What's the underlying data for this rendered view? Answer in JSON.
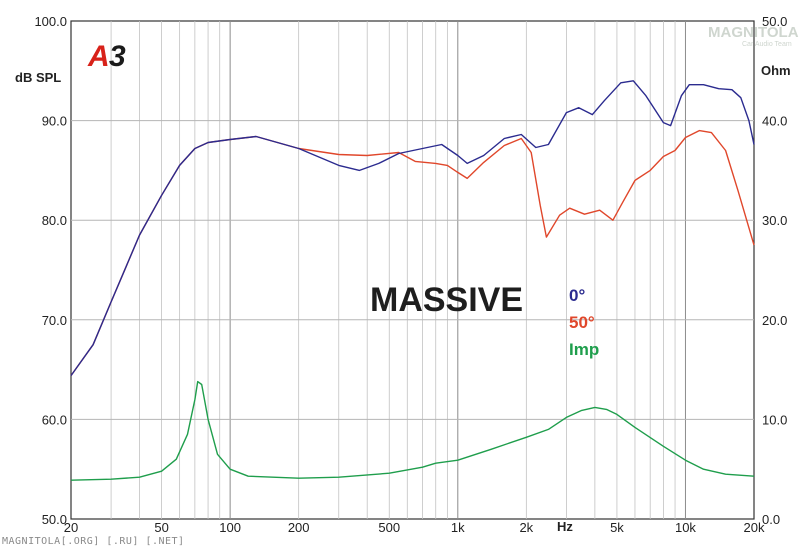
{
  "badge": {
    "prefix": "A",
    "number": "3"
  },
  "watermark": {
    "text": "MAGNITOLA",
    "subtext": "Car Audio Team"
  },
  "footer_text": "MAGNITOLA[.ORG] [.RU] [.NET]",
  "chart_data": {
    "type": "line",
    "title": "MASSIVE",
    "xlabel": "Hz",
    "ylabel": "dB SPL",
    "y2label": "Ohm",
    "x_scale": "log",
    "xlim": [
      20,
      20000
    ],
    "ylim": [
      50,
      100
    ],
    "y2lim": [
      0,
      50
    ],
    "grid": true,
    "legend_position": "center-right",
    "x_ticks": [
      {
        "value": 20,
        "label": "20"
      },
      {
        "value": 50,
        "label": "50"
      },
      {
        "value": 100,
        "label": "100"
      },
      {
        "value": 200,
        "label": "200"
      },
      {
        "value": 500,
        "label": "500"
      },
      {
        "value": 1000,
        "label": "1k"
      },
      {
        "value": 2000,
        "label": "2k"
      },
      {
        "value": 5000,
        "label": "5k"
      },
      {
        "value": 10000,
        "label": "10k"
      },
      {
        "value": 20000,
        "label": "20k"
      }
    ],
    "y_ticks": [
      {
        "value": 50,
        "label": "50.0"
      },
      {
        "value": 60,
        "label": "60.0"
      },
      {
        "value": 70,
        "label": "70.0"
      },
      {
        "value": 80,
        "label": "80.0"
      },
      {
        "value": 90,
        "label": "90.0"
      },
      {
        "value": 100,
        "label": "100.0"
      }
    ],
    "y2_ticks": [
      {
        "value": 0,
        "label": "0.0"
      },
      {
        "value": 10,
        "label": "10.0"
      },
      {
        "value": 20,
        "label": "20.0"
      },
      {
        "value": 30,
        "label": "30.0"
      },
      {
        "value": 40,
        "label": "40.0"
      },
      {
        "value": 50,
        "label": "50.0"
      }
    ],
    "series": [
      {
        "name": "0°",
        "axis": "left",
        "color": "#2b2b8f",
        "points": [
          [
            20,
            64.4
          ],
          [
            25,
            67.5
          ],
          [
            30,
            71.8
          ],
          [
            40,
            78.5
          ],
          [
            50,
            82.5
          ],
          [
            60,
            85.5
          ],
          [
            70,
            87.2
          ],
          [
            80,
            87.8
          ],
          [
            100,
            88.1
          ],
          [
            130,
            88.4
          ],
          [
            200,
            87.2
          ],
          [
            300,
            85.5
          ],
          [
            370,
            85.0
          ],
          [
            450,
            85.7
          ],
          [
            550,
            86.7
          ],
          [
            700,
            87.2
          ],
          [
            850,
            87.6
          ],
          [
            1000,
            86.5
          ],
          [
            1100,
            85.7
          ],
          [
            1300,
            86.5
          ],
          [
            1600,
            88.2
          ],
          [
            1900,
            88.6
          ],
          [
            2200,
            87.3
          ],
          [
            2500,
            87.6
          ],
          [
            3000,
            90.8
          ],
          [
            3400,
            91.3
          ],
          [
            3900,
            90.6
          ],
          [
            4400,
            92.0
          ],
          [
            5200,
            93.8
          ],
          [
            5900,
            94.0
          ],
          [
            6700,
            92.5
          ],
          [
            8000,
            89.8
          ],
          [
            8600,
            89.5
          ],
          [
            9600,
            92.5
          ],
          [
            10400,
            93.6
          ],
          [
            12000,
            93.6
          ],
          [
            14000,
            93.2
          ],
          [
            16000,
            93.1
          ],
          [
            17500,
            92.3
          ],
          [
            19000,
            90.0
          ],
          [
            20000,
            87.6
          ]
        ]
      },
      {
        "name": "50°",
        "axis": "left",
        "color": "#e0472b",
        "points": [
          [
            20,
            64.4
          ],
          [
            25,
            67.5
          ],
          [
            30,
            71.8
          ],
          [
            40,
            78.5
          ],
          [
            50,
            82.5
          ],
          [
            60,
            85.5
          ],
          [
            70,
            87.2
          ],
          [
            80,
            87.8
          ],
          [
            100,
            88.1
          ],
          [
            130,
            88.4
          ],
          [
            200,
            87.2
          ],
          [
            300,
            86.6
          ],
          [
            400,
            86.5
          ],
          [
            550,
            86.8
          ],
          [
            650,
            85.9
          ],
          [
            800,
            85.7
          ],
          [
            900,
            85.5
          ],
          [
            1000,
            84.8
          ],
          [
            1100,
            84.2
          ],
          [
            1300,
            85.8
          ],
          [
            1600,
            87.5
          ],
          [
            1900,
            88.2
          ],
          [
            2100,
            86.8
          ],
          [
            2300,
            81.5
          ],
          [
            2450,
            78.3
          ],
          [
            2800,
            80.5
          ],
          [
            3100,
            81.2
          ],
          [
            3600,
            80.6
          ],
          [
            4200,
            81.0
          ],
          [
            4800,
            80.0
          ],
          [
            5300,
            81.8
          ],
          [
            6000,
            84.0
          ],
          [
            7000,
            85.0
          ],
          [
            8000,
            86.4
          ],
          [
            9000,
            87.0
          ],
          [
            10000,
            88.3
          ],
          [
            11500,
            89.0
          ],
          [
            13000,
            88.8
          ],
          [
            15000,
            87.0
          ],
          [
            17000,
            83.0
          ],
          [
            20000,
            77.5
          ]
        ]
      },
      {
        "name": "Imp",
        "axis": "right",
        "color": "#1f9e4c",
        "points": [
          [
            20,
            3.9
          ],
          [
            30,
            4.0
          ],
          [
            40,
            4.2
          ],
          [
            50,
            4.8
          ],
          [
            58,
            6.0
          ],
          [
            65,
            8.5
          ],
          [
            70,
            12.0
          ],
          [
            72,
            13.8
          ],
          [
            75,
            13.5
          ],
          [
            80,
            10.0
          ],
          [
            88,
            6.5
          ],
          [
            100,
            5.0
          ],
          [
            120,
            4.3
          ],
          [
            200,
            4.1
          ],
          [
            300,
            4.2
          ],
          [
            500,
            4.6
          ],
          [
            700,
            5.2
          ],
          [
            800,
            5.6
          ],
          [
            1000,
            5.9
          ],
          [
            1400,
            7.0
          ],
          [
            2000,
            8.2
          ],
          [
            2500,
            9.0
          ],
          [
            3000,
            10.2
          ],
          [
            3500,
            10.9
          ],
          [
            4000,
            11.2
          ],
          [
            4500,
            11.0
          ],
          [
            5000,
            10.5
          ],
          [
            6000,
            9.2
          ],
          [
            8000,
            7.3
          ],
          [
            10000,
            5.9
          ],
          [
            12000,
            5.0
          ],
          [
            15000,
            4.5
          ],
          [
            20000,
            4.3
          ]
        ]
      }
    ]
  }
}
